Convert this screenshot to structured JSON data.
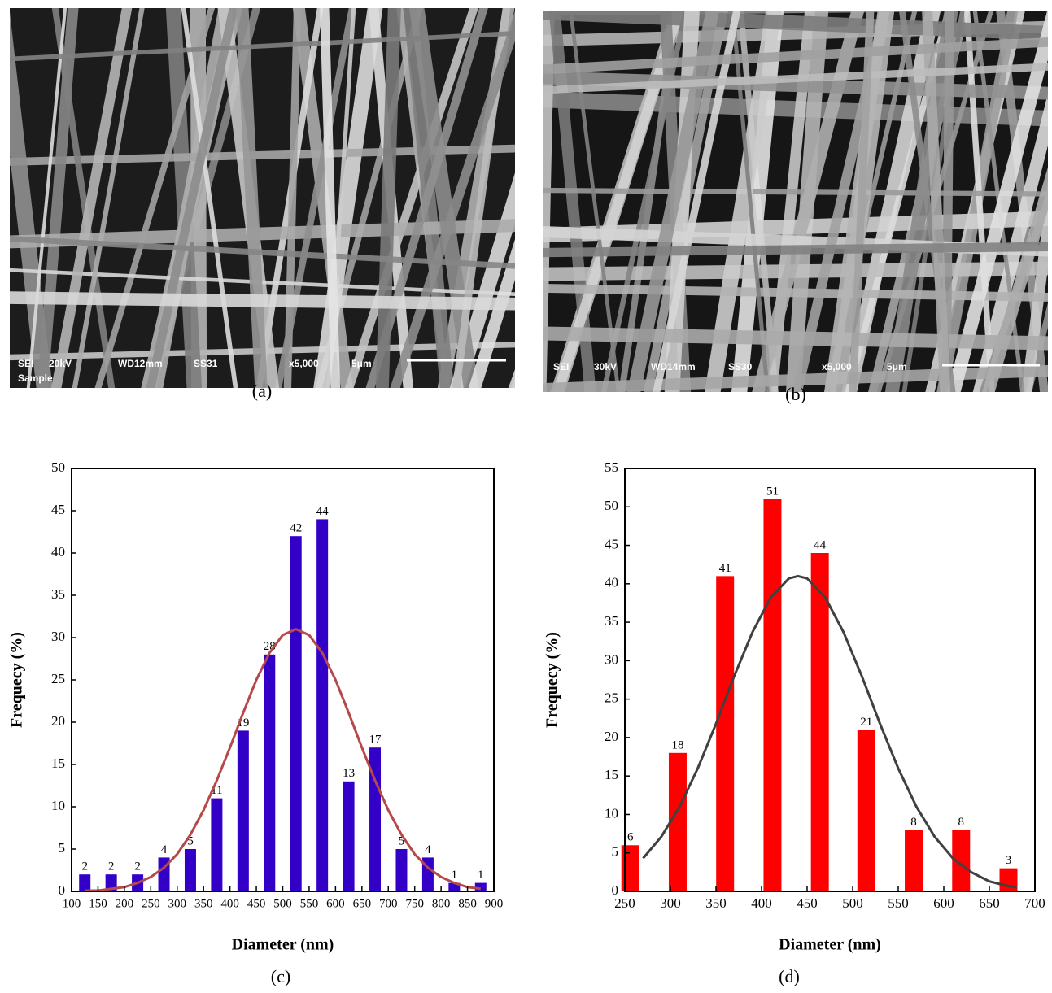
{
  "images": [
    {
      "caption": "(a)",
      "info": [
        "SEI",
        "20kV",
        "WD12mm",
        "SS31",
        "x5,000",
        "5μm",
        "Sample"
      ]
    },
    {
      "caption": "(b)",
      "info": [
        "SEI",
        "30kV",
        "WD14mm",
        "SS30",
        "x5,000",
        "5μm"
      ]
    }
  ],
  "chart_data": [
    {
      "type": "bar",
      "caption": "(c)",
      "xlabel": "Diameter (nm)",
      "ylabel": "Frequecy (%)",
      "x": [
        125,
        175,
        225,
        275,
        325,
        375,
        425,
        475,
        525,
        575,
        625,
        675,
        725,
        775,
        825,
        875
      ],
      "values": [
        2,
        2,
        2,
        4,
        5,
        11,
        19,
        28,
        42,
        44,
        13,
        17,
        5,
        4,
        1,
        1
      ],
      "color": "#3300c8",
      "fit": {
        "color": "#b5484a",
        "x": [
          125,
          150,
          175,
          200,
          225,
          250,
          275,
          300,
          325,
          350,
          375,
          400,
          425,
          450,
          475,
          500,
          525,
          550,
          575,
          600,
          625,
          650,
          675,
          700,
          725,
          750,
          775,
          800,
          825,
          850,
          875
        ],
        "values": [
          0.1,
          0.1,
          0.3,
          0.5,
          1.0,
          1.7,
          2.8,
          4.4,
          6.7,
          9.6,
          13.1,
          17.0,
          21.1,
          25.0,
          28.2,
          30.3,
          31,
          30.3,
          28.2,
          25.0,
          21.1,
          17.0,
          13.1,
          9.6,
          6.7,
          4.4,
          2.8,
          1.7,
          1.0,
          0.5,
          0.3
        ]
      },
      "xlim": [
        100,
        900
      ],
      "xticks": [
        100,
        150,
        200,
        250,
        300,
        350,
        400,
        450,
        500,
        550,
        600,
        650,
        700,
        750,
        800,
        850,
        900
      ],
      "ylim": [
        0,
        50
      ],
      "yticks": [
        0,
        5,
        10,
        15,
        20,
        25,
        30,
        35,
        40,
        45,
        50
      ],
      "grid": false
    },
    {
      "type": "bar",
      "caption": "(d)",
      "xlabel": "Diameter (nm)",
      "ylabel": "Frequecy (%)",
      "x": [
        256,
        308,
        360,
        412,
        464,
        515,
        567,
        619,
        671
      ],
      "values": [
        6,
        18,
        41,
        51,
        44,
        21,
        8,
        8,
        3
      ],
      "color": "#ff0000",
      "fit": {
        "color": "#404040",
        "x": [
          270,
          290,
          310,
          330,
          350,
          370,
          390,
          410,
          430,
          440,
          450,
          470,
          490,
          510,
          530,
          550,
          570,
          590,
          610,
          630,
          650,
          670,
          680
        ],
        "values": [
          4.3,
          7.1,
          11.0,
          16.0,
          21.8,
          28.0,
          33.7,
          38.2,
          40.7,
          41,
          40.7,
          38.2,
          33.7,
          28.0,
          21.8,
          16.0,
          11.0,
          7.1,
          4.3,
          2.5,
          1.3,
          0.7,
          0.5
        ]
      },
      "xlim": [
        250,
        700
      ],
      "xticks": [
        250,
        300,
        350,
        400,
        450,
        500,
        550,
        600,
        650,
        700
      ],
      "ylim": [
        0,
        55
      ],
      "yticks": [
        0,
        5,
        10,
        15,
        20,
        25,
        30,
        35,
        40,
        45,
        50,
        55
      ],
      "grid": false
    }
  ]
}
